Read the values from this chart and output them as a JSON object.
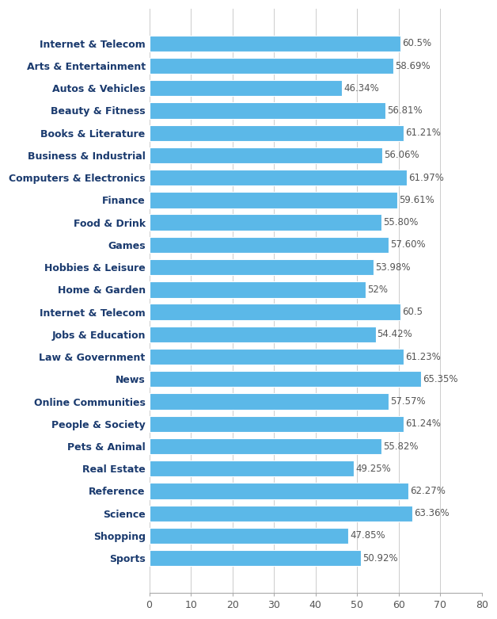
{
  "categories": [
    "Internet & Telecom",
    "Arts & Entertainment",
    "Autos & Vehicles",
    "Beauty & Fitness",
    "Books & Literature",
    "Business & Industrial",
    "Computers & Electronics",
    "Finance",
    "Food & Drink",
    "Games",
    "Hobbies & Leisure",
    "Home & Garden",
    "Internet & Telecom",
    "Jobs & Education",
    "Law & Government",
    "News",
    "Online Communities",
    "People & Society",
    "Pets & Animal",
    "Real Estate",
    "Reference",
    "Science",
    "Shopping",
    "Sports"
  ],
  "values": [
    60.5,
    58.69,
    46.34,
    56.81,
    61.21,
    56.06,
    61.97,
    59.61,
    55.8,
    57.6,
    53.98,
    52.0,
    60.5,
    54.42,
    61.23,
    65.35,
    57.57,
    61.24,
    55.82,
    49.25,
    62.27,
    63.36,
    47.85,
    50.92
  ],
  "labels": [
    "60.5%",
    "58.69%",
    "46.34%",
    "56.81%",
    "61.21%",
    "56.06%",
    "61.97%",
    "59.61%",
    "55.80%",
    "57.60%",
    "53.98%",
    "52%",
    "60.5",
    "54.42%",
    "61.23%",
    "65.35%",
    "57.57%",
    "61.24%",
    "55.82%",
    "49.25%",
    "62.27%",
    "63.36%",
    "47.85%",
    "50.92%"
  ],
  "bar_color": "#5BB8E8",
  "bar_edge_color": "white",
  "background_color": "#ffffff",
  "ytick_color": "#1a3a6e",
  "label_color": "#555555",
  "xlim": [
    0,
    80
  ],
  "xticks": [
    0,
    10,
    20,
    30,
    40,
    50,
    60,
    70,
    80
  ],
  "bar_height": 0.72,
  "tick_fontsize": 9,
  "value_label_fontsize": 8.5,
  "grid_color": "#cccccc"
}
